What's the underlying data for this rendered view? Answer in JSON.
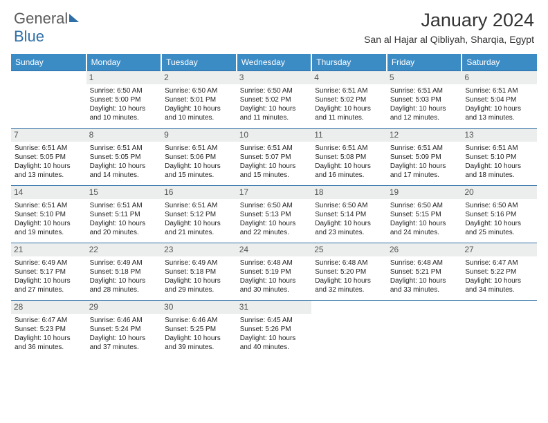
{
  "logo": {
    "text1": "General",
    "text2": "Blue"
  },
  "title": "January 2024",
  "location": "San al Hajar al Qibliyah, Sharqia, Egypt",
  "dayNames": [
    "Sunday",
    "Monday",
    "Tuesday",
    "Wednesday",
    "Thursday",
    "Friday",
    "Saturday"
  ],
  "colors": {
    "header_bg": "#3B8BC5",
    "daynum_bg": "#eceded",
    "rule": "#2F6FA7",
    "brand_blue": "#2F6FA7",
    "logo_gray": "#5c5c5c"
  },
  "typography": {
    "title_size_pt": 20,
    "location_size_pt": 11,
    "dayhead_size_pt": 9,
    "body_size_pt": 7.5
  },
  "weeks": [
    [
      {
        "num": "",
        "l1": "",
        "l2": "",
        "l3": "",
        "l4": ""
      },
      {
        "num": "1",
        "l1": "Sunrise: 6:50 AM",
        "l2": "Sunset: 5:00 PM",
        "l3": "Daylight: 10 hours",
        "l4": "and 10 minutes."
      },
      {
        "num": "2",
        "l1": "Sunrise: 6:50 AM",
        "l2": "Sunset: 5:01 PM",
        "l3": "Daylight: 10 hours",
        "l4": "and 10 minutes."
      },
      {
        "num": "3",
        "l1": "Sunrise: 6:50 AM",
        "l2": "Sunset: 5:02 PM",
        "l3": "Daylight: 10 hours",
        "l4": "and 11 minutes."
      },
      {
        "num": "4",
        "l1": "Sunrise: 6:51 AM",
        "l2": "Sunset: 5:02 PM",
        "l3": "Daylight: 10 hours",
        "l4": "and 11 minutes."
      },
      {
        "num": "5",
        "l1": "Sunrise: 6:51 AM",
        "l2": "Sunset: 5:03 PM",
        "l3": "Daylight: 10 hours",
        "l4": "and 12 minutes."
      },
      {
        "num": "6",
        "l1": "Sunrise: 6:51 AM",
        "l2": "Sunset: 5:04 PM",
        "l3": "Daylight: 10 hours",
        "l4": "and 13 minutes."
      }
    ],
    [
      {
        "num": "7",
        "l1": "Sunrise: 6:51 AM",
        "l2": "Sunset: 5:05 PM",
        "l3": "Daylight: 10 hours",
        "l4": "and 13 minutes."
      },
      {
        "num": "8",
        "l1": "Sunrise: 6:51 AM",
        "l2": "Sunset: 5:05 PM",
        "l3": "Daylight: 10 hours",
        "l4": "and 14 minutes."
      },
      {
        "num": "9",
        "l1": "Sunrise: 6:51 AM",
        "l2": "Sunset: 5:06 PM",
        "l3": "Daylight: 10 hours",
        "l4": "and 15 minutes."
      },
      {
        "num": "10",
        "l1": "Sunrise: 6:51 AM",
        "l2": "Sunset: 5:07 PM",
        "l3": "Daylight: 10 hours",
        "l4": "and 15 minutes."
      },
      {
        "num": "11",
        "l1": "Sunrise: 6:51 AM",
        "l2": "Sunset: 5:08 PM",
        "l3": "Daylight: 10 hours",
        "l4": "and 16 minutes."
      },
      {
        "num": "12",
        "l1": "Sunrise: 6:51 AM",
        "l2": "Sunset: 5:09 PM",
        "l3": "Daylight: 10 hours",
        "l4": "and 17 minutes."
      },
      {
        "num": "13",
        "l1": "Sunrise: 6:51 AM",
        "l2": "Sunset: 5:10 PM",
        "l3": "Daylight: 10 hours",
        "l4": "and 18 minutes."
      }
    ],
    [
      {
        "num": "14",
        "l1": "Sunrise: 6:51 AM",
        "l2": "Sunset: 5:10 PM",
        "l3": "Daylight: 10 hours",
        "l4": "and 19 minutes."
      },
      {
        "num": "15",
        "l1": "Sunrise: 6:51 AM",
        "l2": "Sunset: 5:11 PM",
        "l3": "Daylight: 10 hours",
        "l4": "and 20 minutes."
      },
      {
        "num": "16",
        "l1": "Sunrise: 6:51 AM",
        "l2": "Sunset: 5:12 PM",
        "l3": "Daylight: 10 hours",
        "l4": "and 21 minutes."
      },
      {
        "num": "17",
        "l1": "Sunrise: 6:50 AM",
        "l2": "Sunset: 5:13 PM",
        "l3": "Daylight: 10 hours",
        "l4": "and 22 minutes."
      },
      {
        "num": "18",
        "l1": "Sunrise: 6:50 AM",
        "l2": "Sunset: 5:14 PM",
        "l3": "Daylight: 10 hours",
        "l4": "and 23 minutes."
      },
      {
        "num": "19",
        "l1": "Sunrise: 6:50 AM",
        "l2": "Sunset: 5:15 PM",
        "l3": "Daylight: 10 hours",
        "l4": "and 24 minutes."
      },
      {
        "num": "20",
        "l1": "Sunrise: 6:50 AM",
        "l2": "Sunset: 5:16 PM",
        "l3": "Daylight: 10 hours",
        "l4": "and 25 minutes."
      }
    ],
    [
      {
        "num": "21",
        "l1": "Sunrise: 6:49 AM",
        "l2": "Sunset: 5:17 PM",
        "l3": "Daylight: 10 hours",
        "l4": "and 27 minutes."
      },
      {
        "num": "22",
        "l1": "Sunrise: 6:49 AM",
        "l2": "Sunset: 5:18 PM",
        "l3": "Daylight: 10 hours",
        "l4": "and 28 minutes."
      },
      {
        "num": "23",
        "l1": "Sunrise: 6:49 AM",
        "l2": "Sunset: 5:18 PM",
        "l3": "Daylight: 10 hours",
        "l4": "and 29 minutes."
      },
      {
        "num": "24",
        "l1": "Sunrise: 6:48 AM",
        "l2": "Sunset: 5:19 PM",
        "l3": "Daylight: 10 hours",
        "l4": "and 30 minutes."
      },
      {
        "num": "25",
        "l1": "Sunrise: 6:48 AM",
        "l2": "Sunset: 5:20 PM",
        "l3": "Daylight: 10 hours",
        "l4": "and 32 minutes."
      },
      {
        "num": "26",
        "l1": "Sunrise: 6:48 AM",
        "l2": "Sunset: 5:21 PM",
        "l3": "Daylight: 10 hours",
        "l4": "and 33 minutes."
      },
      {
        "num": "27",
        "l1": "Sunrise: 6:47 AM",
        "l2": "Sunset: 5:22 PM",
        "l3": "Daylight: 10 hours",
        "l4": "and 34 minutes."
      }
    ],
    [
      {
        "num": "28",
        "l1": "Sunrise: 6:47 AM",
        "l2": "Sunset: 5:23 PM",
        "l3": "Daylight: 10 hours",
        "l4": "and 36 minutes."
      },
      {
        "num": "29",
        "l1": "Sunrise: 6:46 AM",
        "l2": "Sunset: 5:24 PM",
        "l3": "Daylight: 10 hours",
        "l4": "and 37 minutes."
      },
      {
        "num": "30",
        "l1": "Sunrise: 6:46 AM",
        "l2": "Sunset: 5:25 PM",
        "l3": "Daylight: 10 hours",
        "l4": "and 39 minutes."
      },
      {
        "num": "31",
        "l1": "Sunrise: 6:45 AM",
        "l2": "Sunset: 5:26 PM",
        "l3": "Daylight: 10 hours",
        "l4": "and 40 minutes."
      },
      {
        "num": "",
        "l1": "",
        "l2": "",
        "l3": "",
        "l4": ""
      },
      {
        "num": "",
        "l1": "",
        "l2": "",
        "l3": "",
        "l4": ""
      },
      {
        "num": "",
        "l1": "",
        "l2": "",
        "l3": "",
        "l4": ""
      }
    ]
  ]
}
